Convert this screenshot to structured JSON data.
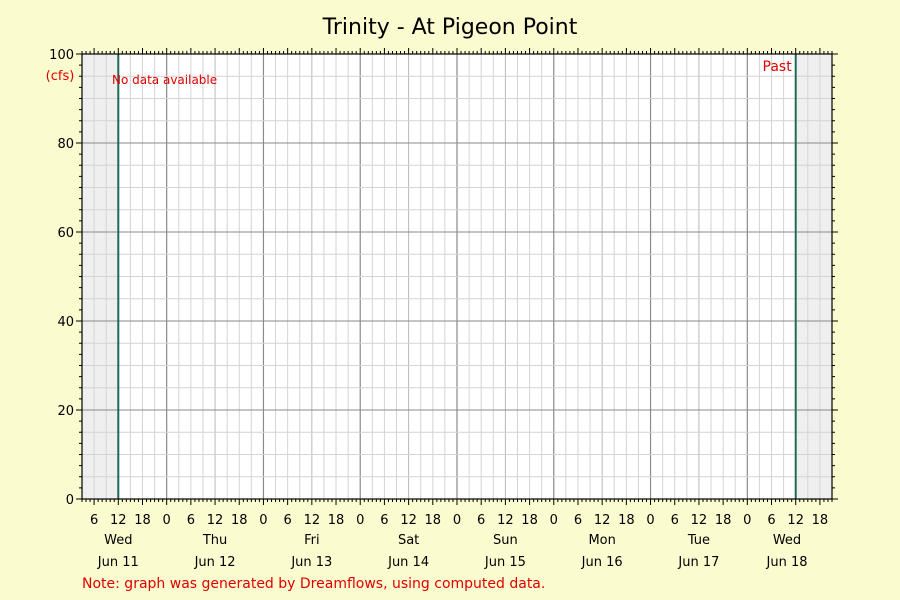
{
  "chart_data": {
    "type": "line",
    "title": "Trinity - At Pigeon Point",
    "ylabel": "(cfs)",
    "ylim": [
      0,
      100
    ],
    "y_ticks": [
      0,
      20,
      40,
      60,
      80,
      100
    ],
    "x_range": [
      "2025-06-11T03:00",
      "2025-06-18T21:00"
    ],
    "x_hour_tick_labels": [
      "6",
      "12",
      "18",
      "0"
    ],
    "days": [
      {
        "weekday": "Wed",
        "date": "Jun 11"
      },
      {
        "weekday": "Thu",
        "date": "Jun 12"
      },
      {
        "weekday": "Fri",
        "date": "Jun 13"
      },
      {
        "weekday": "Sat",
        "date": "Jun 14"
      },
      {
        "weekday": "Sun",
        "date": "Jun 15"
      },
      {
        "weekday": "Mon",
        "date": "Jun 16"
      },
      {
        "weekday": "Tue",
        "date": "Jun 17"
      },
      {
        "weekday": "Wed",
        "date": "Jun 18"
      }
    ],
    "grid": true,
    "series": [],
    "shaded_ranges": [
      [
        "2025-06-11T03:00",
        "2025-06-11T12:00"
      ],
      [
        "2025-06-18T12:00",
        "2025-06-18T21:00"
      ]
    ],
    "markers": [
      {
        "time": "2025-06-11T12:00"
      },
      {
        "time": "2025-06-18T12:00",
        "label": "Past"
      }
    ],
    "annotations": {
      "no_data": "No data available",
      "note": "Note: graph was generated by Dreamflows, using computed data."
    },
    "colors": {
      "background": "#fbfbd0",
      "plot_bg": "#ffffff",
      "shade": "#efefef",
      "marker": "#1f6b55",
      "annotation": "#e00000",
      "grid_minor": "#d4d4d4",
      "grid_major": "#8a8a8a"
    }
  }
}
